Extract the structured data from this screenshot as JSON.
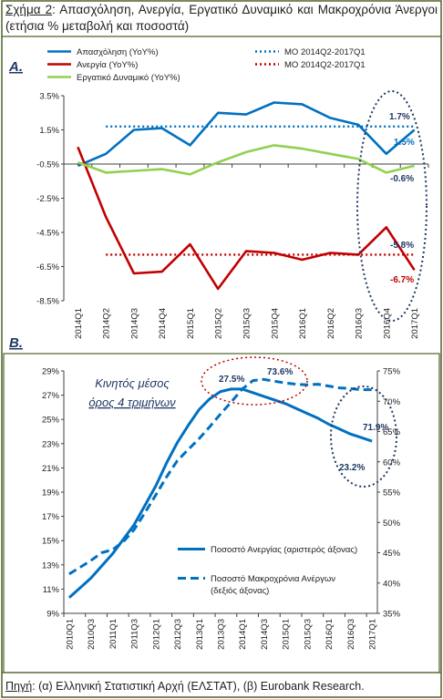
{
  "figure": {
    "label": "Σχήμα 2",
    "title": "Απασχόληση, Ανεργία, Εργατικό Δυναμικό και Μακροχρόνια Άνεργοι (ετήσια % μεταβολή και ποσοστά)",
    "source_label": "Πηγή",
    "source_text": "(α) Ελληνική Στατιστική Αρχή (ΕΛΣΤΑΤ), (β) Eurobank Research."
  },
  "colors": {
    "blue": "#0070C0",
    "red": "#C00000",
    "green": "#92D050",
    "navy": "#1F3864",
    "frame": "#4F6228"
  },
  "chart_data": [
    {
      "panel_label": "A.",
      "type": "line",
      "categories": [
        "2014Q1",
        "2014Q2",
        "2014Q3",
        "2014Q4",
        "2015Q1",
        "2015Q2",
        "2015Q3",
        "2015Q4",
        "2016Q1",
        "2016Q2",
        "2016Q3",
        "2016Q4",
        "2017Q1"
      ],
      "ylim": [
        -8.5,
        3.5
      ],
      "yticks": [
        3.5,
        1.5,
        -0.5,
        -2.5,
        -4.5,
        -6.5,
        -8.5
      ],
      "ytick_labels": [
        "3.5%",
        "1.5%",
        "-0.5%",
        "-2.5%",
        "-4.5%",
        "-6.5%",
        "-8.5%"
      ],
      "legend_position": "top",
      "series": [
        {
          "name": "Απασχόληση (YoY%)",
          "color": "#0070C0",
          "style": "solid",
          "values": [
            -0.6,
            0.1,
            1.5,
            1.6,
            0.6,
            2.5,
            2.4,
            3.1,
            3.0,
            2.2,
            1.8,
            0.1,
            1.5
          ]
        },
        {
          "name": "Ανεργία (YoY%)",
          "color": "#C00000",
          "style": "solid",
          "values": [
            0.5,
            -3.6,
            -6.9,
            -6.8,
            -5.2,
            -7.8,
            -5.6,
            -5.7,
            -6.1,
            -5.7,
            -5.8,
            -4.2,
            -6.7
          ]
        },
        {
          "name": "Εργατικό Δυναμικό (YoY%)",
          "color": "#92D050",
          "style": "solid",
          "values": [
            -0.4,
            -1.0,
            -0.9,
            -0.8,
            -1.1,
            -0.4,
            0.2,
            0.6,
            0.4,
            0.1,
            -0.2,
            -1.0,
            -0.6
          ]
        },
        {
          "name": "ΜΟ 2014Q2-2017Q1",
          "color": "#0070C0",
          "style": "dotted",
          "from_index": 1,
          "values": [
            1.7,
            1.7,
            1.7,
            1.7,
            1.7,
            1.7,
            1.7,
            1.7,
            1.7,
            1.7,
            1.7,
            1.7,
            1.7
          ]
        },
        {
          "name": "ΜΟ 2014Q2-2017Q1",
          "color": "#C00000",
          "style": "dotted",
          "from_index": 1,
          "values": [
            -5.8,
            -5.8,
            -5.8,
            -5.8,
            -5.8,
            -5.8,
            -5.8,
            -5.8,
            -5.8,
            -5.8,
            -5.8,
            -5.8,
            -5.8
          ]
        }
      ],
      "annotations": [
        "1.7%",
        "1.5%",
        "-0.6%",
        "-5.8%",
        "-6.7%"
      ]
    },
    {
      "panel_label": "B.",
      "type": "line",
      "categories": [
        "2010Q1",
        "2010Q2",
        "2010Q3",
        "2010Q4",
        "2011Q1",
        "2011Q2",
        "2011Q3",
        "2011Q4",
        "2012Q1",
        "2012Q2",
        "2012Q3",
        "2012Q4",
        "2013Q1",
        "2013Q2",
        "2013Q3",
        "2013Q4",
        "2014Q1",
        "2014Q2",
        "2014Q3",
        "2014Q4",
        "2015Q1",
        "2015Q2",
        "2015Q3",
        "2015Q4",
        "2016Q1",
        "2016Q2",
        "2016Q3",
        "2016Q4",
        "2017Q1"
      ],
      "tick_labels": [
        "2010Q1",
        "2010Q3",
        "2011Q1",
        "2011Q3",
        "2012Q1",
        "2012Q3",
        "2013Q1",
        "2013Q3",
        "2014Q1",
        "2014Q3",
        "2015Q1",
        "2015Q3",
        "2016Q1",
        "2016Q3",
        "2017Q1"
      ],
      "y_left": {
        "ylim": [
          9,
          29
        ],
        "ticks": [
          29,
          27,
          25,
          23,
          21,
          19,
          17,
          15,
          13,
          11,
          9
        ],
        "labels": [
          "29%",
          "27%",
          "25%",
          "23%",
          "21%",
          "19%",
          "17%",
          "15%",
          "13%",
          "11%",
          "9%"
        ]
      },
      "y_right": {
        "ylim": [
          35,
          75
        ],
        "ticks": [
          75,
          70,
          65,
          60,
          55,
          50,
          45,
          40,
          35
        ],
        "labels": [
          "75%",
          "70%",
          "65%",
          "60%",
          "55%",
          "50%",
          "45%",
          "40%",
          "35%"
        ]
      },
      "legend_position": "bottom-right",
      "series": [
        {
          "name": "Ποσοστό Ανεργίας (αριστερός άξονας)",
          "axis": "left",
          "color": "#0070C0",
          "style": "solid",
          "values": [
            10.3,
            11.1,
            11.9,
            12.9,
            13.9,
            15.1,
            16.3,
            17.9,
            19.5,
            21.4,
            23.1,
            24.5,
            25.8,
            26.7,
            27.3,
            27.5,
            27.5,
            27.2,
            26.9,
            26.6,
            26.3,
            25.9,
            25.5,
            25.1,
            24.6,
            24.2,
            23.8,
            23.5,
            23.2
          ]
        },
        {
          "name": "Ποσοστό Μακροχρόνια Ανέργων (δεξιός άξονας)",
          "axis": "right",
          "color": "#0070C0",
          "style": "dashed",
          "values": [
            41.5,
            42.6,
            43.7,
            45.0,
            45.5,
            46.8,
            48.8,
            51.6,
            54.5,
            57.5,
            60.2,
            62.0,
            63.8,
            65.8,
            67.9,
            69.9,
            72.0,
            73.4,
            73.6,
            73.3,
            73.0,
            72.8,
            72.7,
            72.8,
            72.5,
            72.2,
            72.1,
            71.9,
            71.9
          ]
        }
      ],
      "annotation_title": "Κινητός μέσος όρος 4 τριμήνων",
      "annotations": [
        "27.5%",
        "73.6%",
        "71.9%",
        "23.2%"
      ]
    }
  ]
}
